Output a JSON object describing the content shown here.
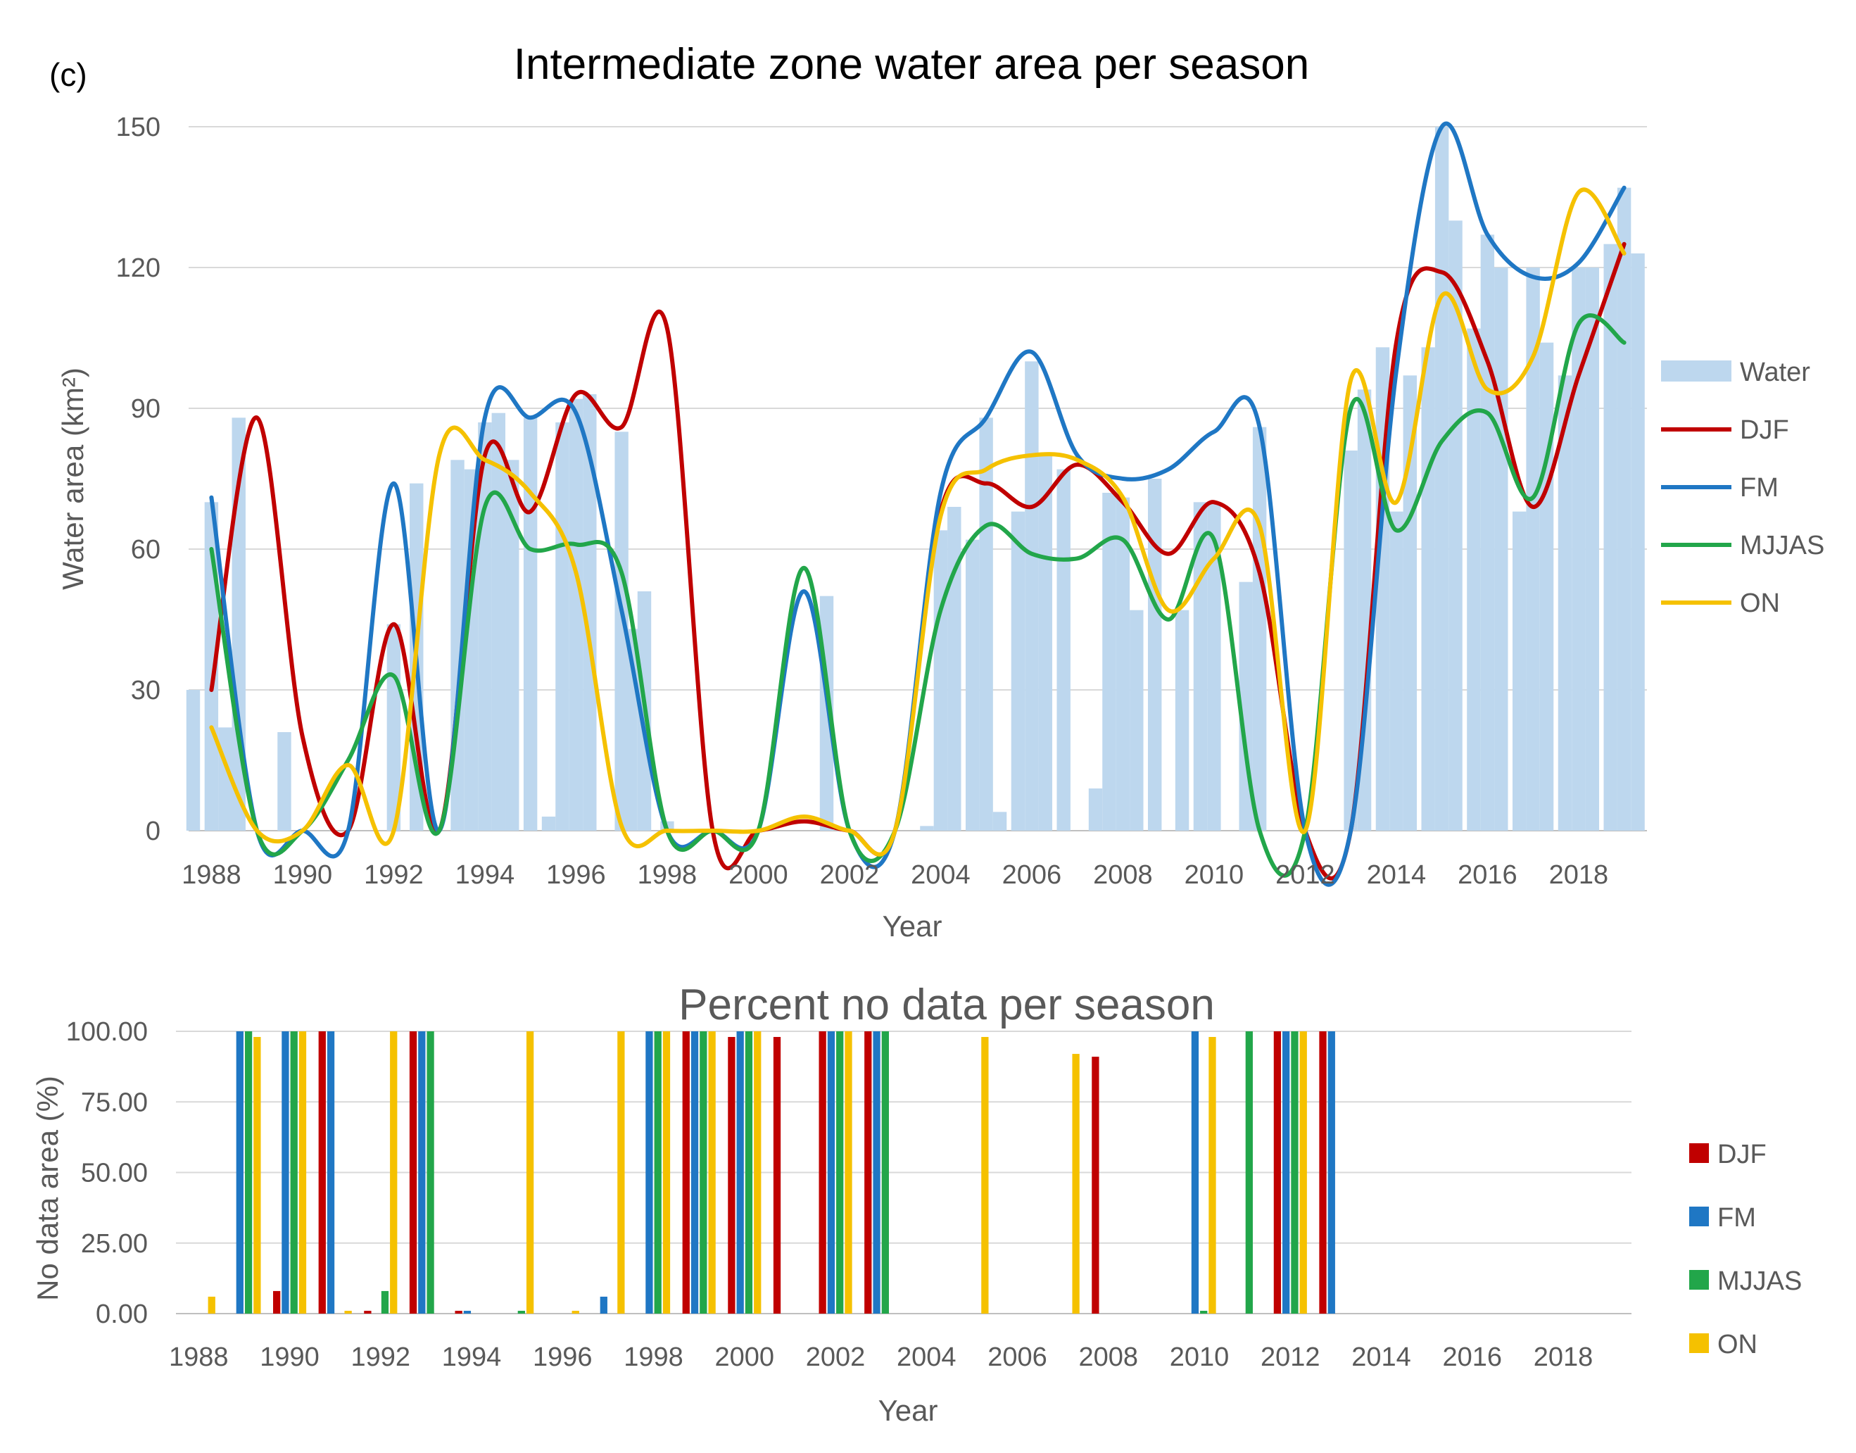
{
  "panel_label": "(c)",
  "chart_data": [
    {
      "type": "bar+line",
      "title": "Intermediate zone water area per season",
      "xlabel": "Year",
      "ylabel": "Water area (km²)",
      "ylim": [
        0,
        150
      ],
      "yticks": [
        "0",
        "30",
        "60",
        "90",
        "120",
        "150"
      ],
      "xticks": [
        "1988",
        "1990",
        "1992",
        "1994",
        "1996",
        "1998",
        "2000",
        "2002",
        "2004",
        "2006",
        "2008",
        "2010",
        "2012",
        "2014",
        "2016",
        "2018"
      ],
      "grid": "horizontal",
      "legend_position": "right",
      "bars": {
        "name": "Water",
        "color": "#bdd7ee",
        "x": [
          1987.6,
          1988,
          1988.3,
          1988.6,
          1989.2,
          1989.6,
          1990,
          1990.5,
          1991,
          1991.5,
          1991.7,
          1992,
          1992.5,
          1993,
          1993.4,
          1993.7,
          1994,
          1994.3,
          1994.6,
          1995,
          1995.4,
          1995.7,
          1996,
          1996.3,
          1996.6,
          1997,
          1997.2,
          1997.5,
          1998,
          1998.6,
          1999,
          1999.6,
          2000,
          2000.5,
          2001,
          2001.5,
          2002,
          2002.6,
          2003,
          2003.4,
          2003.7,
          2004,
          2004.3,
          2004.7,
          2005,
          2005.3,
          2005.7,
          2006,
          2006.3,
          2006.7,
          2007,
          2007.4,
          2007.7,
          2008,
          2008.3,
          2008.7,
          2009,
          2009.3,
          2009.7,
          2010,
          2010.3,
          2010.7,
          2011,
          2011.3,
          2011.7,
          2012,
          2012.4,
          2012.7,
          2013,
          2013.3,
          2013.7,
          2014,
          2014.3,
          2014.7,
          2015,
          2015.3,
          2015.7,
          2016,
          2016.3,
          2016.7,
          2017,
          2017.3,
          2017.7,
          2018,
          2018.3,
          2018.7,
          2019,
          2019.3
        ],
        "values": [
          30,
          70,
          22,
          88,
          0,
          21,
          0,
          0,
          0,
          0,
          0,
          44,
          74,
          0,
          79,
          77,
          87,
          89,
          79,
          88,
          3,
          87,
          92,
          93,
          0,
          85,
          43,
          51,
          2,
          0,
          0,
          0,
          0,
          0,
          0,
          50,
          0,
          0,
          0,
          0,
          1,
          64,
          69,
          62,
          88,
          4,
          68,
          100,
          80,
          77,
          0,
          9,
          72,
          71,
          47,
          75,
          0,
          47,
          70,
          70,
          0,
          53,
          86,
          0,
          0,
          0,
          0,
          0,
          81,
          94,
          103,
          68,
          97,
          103,
          152,
          130,
          107,
          127,
          120,
          68,
          120,
          104,
          97,
          120,
          120,
          125,
          137,
          123
        ],
        "width_years": 0.3
      },
      "series": [
        {
          "name": "DJF",
          "color": "#c00000",
          "x": [
            1988,
            1989,
            1990,
            1991,
            1992,
            1993,
            1994,
            1995,
            1996,
            1997,
            1998,
            1999,
            2000,
            2001,
            2002,
            2003,
            2004,
            2005,
            2006,
            2007,
            2008,
            2009,
            2010,
            2011,
            2012,
            2013,
            2014,
            2015,
            2016,
            2017,
            2018,
            2019
          ],
          "values": [
            30,
            88,
            20,
            0,
            44,
            0,
            80,
            68,
            93,
            86,
            107,
            0,
            0,
            2,
            0,
            0,
            68,
            74,
            69,
            78,
            70,
            59,
            70,
            55,
            0,
            0,
            104,
            119,
            100,
            69,
            97,
            125
          ]
        },
        {
          "name": "FM",
          "color": "#1f77c4",
          "x": [
            1988,
            1989,
            1990,
            1991,
            1992,
            1993,
            1994,
            1995,
            1996,
            1997,
            1998,
            1999,
            2000,
            2001,
            2002,
            2003,
            2004,
            2005,
            2006,
            2007,
            2008,
            2009,
            2010,
            2011,
            2012,
            2013,
            2014,
            2015,
            2016,
            2017,
            2018,
            2019
          ],
          "values": [
            71,
            0,
            0,
            0,
            74,
            0,
            88,
            88,
            89,
            47,
            0,
            0,
            0,
            51,
            0,
            0,
            72,
            88,
            102,
            80,
            75,
            77,
            85,
            86,
            0,
            0,
            98,
            150,
            127,
            118,
            121,
            137
          ]
        },
        {
          "name": "MJJAS",
          "color": "#22a64a",
          "x": [
            1988,
            1989,
            1990,
            1991,
            1992,
            1993,
            1994,
            1995,
            1996,
            1997,
            1998,
            1999,
            2000,
            2001,
            2002,
            2003,
            2004,
            2005,
            2006,
            2007,
            2008,
            2009,
            2010,
            2011,
            2012,
            2013,
            2014,
            2015,
            2016,
            2017,
            2018,
            2019
          ],
          "values": [
            60,
            0,
            0,
            15,
            33,
            0,
            69,
            60,
            61,
            55,
            0,
            0,
            0,
            56,
            0,
            0,
            47,
            65,
            59,
            58,
            62,
            45,
            62,
            0,
            0,
            90,
            64,
            83,
            89,
            71,
            108,
            104
          ]
        },
        {
          "name": "ON",
          "color": "#f5c100",
          "x": [
            1988,
            1989,
            1990,
            1991,
            1992,
            1993,
            1994,
            1995,
            1996,
            1997,
            1998,
            1999,
            2000,
            2001,
            2002,
            2003,
            2004,
            2005,
            2006,
            2007,
            2008,
            2009,
            2010,
            2011,
            2012,
            2013,
            2014,
            2015,
            2016,
            2017,
            2018,
            2019
          ],
          "values": [
            22,
            0,
            0,
            14,
            0,
            80,
            79,
            72,
            55,
            1,
            0,
            0,
            0,
            3,
            0,
            0,
            67,
            77,
            80,
            79,
            71,
            47,
            58,
            65,
            0,
            96,
            70,
            114,
            94,
            101,
            136,
            123
          ]
        }
      ]
    },
    {
      "type": "bar",
      "title": "Percent no data per season",
      "xlabel": "Year",
      "ylabel": "No data area (%)",
      "ylim": [
        0,
        100
      ],
      "yticks": [
        "0.00",
        "25.00",
        "50.00",
        "75.00",
        "100.00"
      ],
      "xticks": [
        "1988",
        "1990",
        "1992",
        "1994",
        "1996",
        "1998",
        "2000",
        "2002",
        "2004",
        "2006",
        "2008",
        "2010",
        "2012",
        "2014",
        "2016",
        "2018"
      ],
      "grid": "horizontal",
      "legend_position": "right",
      "categories": [
        1988,
        1989,
        1990,
        1991,
        1992,
        1993,
        1994,
        1995,
        1996,
        1997,
        1998,
        1999,
        2000,
        2001,
        2002,
        2003,
        2004,
        2005,
        2006,
        2007,
        2008,
        2009,
        2010,
        2011,
        2012,
        2013,
        2014,
        2015,
        2016,
        2017,
        2018,
        2019
      ],
      "series": [
        {
          "name": "DJF",
          "color": "#c00000",
          "values": [
            0,
            0,
            8,
            100,
            1,
            100,
            1,
            0,
            0,
            0,
            0,
            100,
            98,
            98,
            100,
            100,
            0,
            0,
            0,
            0,
            91,
            0,
            0,
            0,
            100,
            100,
            0,
            0,
            0,
            0,
            0,
            0
          ]
        },
        {
          "name": "FM",
          "color": "#1f77c4",
          "values": [
            0,
            100,
            100,
            100,
            0,
            100,
            1,
            0,
            0,
            6,
            100,
            100,
            100,
            0,
            100,
            100,
            0,
            0,
            0,
            0,
            0,
            0,
            100,
            0,
            100,
            100,
            0,
            0,
            0,
            0,
            0,
            0
          ]
        },
        {
          "name": "MJJAS",
          "color": "#22a64a",
          "values": [
            0,
            100,
            100,
            0,
            8,
            100,
            0,
            1,
            0,
            0,
            100,
            100,
            100,
            0,
            100,
            100,
            0,
            0,
            0,
            0,
            0,
            0,
            1,
            100,
            100,
            0,
            0,
            0,
            0,
            0,
            0,
            0
          ]
        },
        {
          "name": "ON",
          "color": "#f5c100",
          "values": [
            6,
            98,
            100,
            1,
            100,
            0,
            0,
            100,
            1,
            100,
            100,
            100,
            100,
            0,
            100,
            0,
            0,
            98,
            0,
            92,
            0,
            0,
            98,
            0,
            100,
            0,
            0,
            0,
            0,
            0,
            0,
            0
          ]
        }
      ]
    }
  ]
}
